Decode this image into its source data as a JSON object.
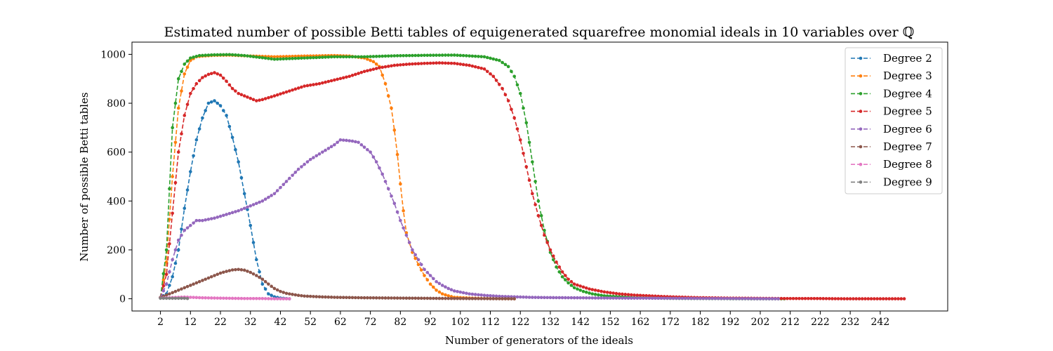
{
  "chart_data": {
    "type": "line",
    "title": "Estimated number of possible Betti tables of equigenerated squarefree monomial ideals in 10 variables over ℚ",
    "xlabel": "Number of generators of the ideals",
    "ylabel": "Number of possible Betti tables",
    "xlim": [
      -7.5,
      264.5
    ],
    "ylim": [
      -50,
      1050
    ],
    "xticks": [
      2,
      12,
      22,
      32,
      42,
      52,
      62,
      72,
      82,
      92,
      102,
      112,
      122,
      132,
      142,
      152,
      162,
      172,
      182,
      192,
      202,
      212,
      222,
      232,
      242
    ],
    "yticks": [
      0,
      200,
      400,
      600,
      800,
      1000
    ],
    "grid": false,
    "legend_position": "top-right",
    "line_style": "dashed",
    "marker": "dot",
    "series": [
      {
        "name": "Degree 2",
        "color": "#1f77b4",
        "points": [
          [
            2,
            5
          ],
          [
            4,
            20
          ],
          [
            6,
            90
          ],
          [
            8,
            200
          ],
          [
            10,
            370
          ],
          [
            12,
            520
          ],
          [
            14,
            650
          ],
          [
            16,
            740
          ],
          [
            18,
            800
          ],
          [
            20,
            810
          ],
          [
            22,
            790
          ],
          [
            24,
            750
          ],
          [
            26,
            660
          ],
          [
            28,
            560
          ],
          [
            30,
            430
          ],
          [
            32,
            300
          ],
          [
            34,
            160
          ],
          [
            36,
            60
          ],
          [
            38,
            20
          ],
          [
            40,
            8
          ],
          [
            42,
            3
          ],
          [
            45,
            0
          ]
        ]
      },
      {
        "name": "Degree 3",
        "color": "#ff7f0e",
        "points": [
          [
            2,
            5
          ],
          [
            4,
            150
          ],
          [
            6,
            500
          ],
          [
            8,
            780
          ],
          [
            10,
            920
          ],
          [
            12,
            975
          ],
          [
            14,
            990
          ],
          [
            16,
            993
          ],
          [
            20,
            996
          ],
          [
            25,
            997
          ],
          [
            30,
            994
          ],
          [
            40,
            990
          ],
          [
            50,
            993
          ],
          [
            60,
            995
          ],
          [
            65,
            993
          ],
          [
            70,
            985
          ],
          [
            73,
            970
          ],
          [
            75,
            950
          ],
          [
            77,
            880
          ],
          [
            79,
            780
          ],
          [
            80,
            690
          ],
          [
            81,
            590
          ],
          [
            82,
            470
          ],
          [
            83,
            360
          ],
          [
            84,
            270
          ],
          [
            86,
            190
          ],
          [
            88,
            140
          ],
          [
            90,
            95
          ],
          [
            92,
            60
          ],
          [
            94,
            35
          ],
          [
            96,
            20
          ],
          [
            98,
            12
          ],
          [
            100,
            6
          ],
          [
            105,
            3
          ],
          [
            110,
            1
          ],
          [
            120,
            0
          ]
        ]
      },
      {
        "name": "Degree 4",
        "color": "#2ca02c",
        "points": [
          [
            2,
            5
          ],
          [
            4,
            200
          ],
          [
            6,
            700
          ],
          [
            8,
            900
          ],
          [
            10,
            960
          ],
          [
            12,
            985
          ],
          [
            15,
            995
          ],
          [
            20,
            998
          ],
          [
            25,
            999
          ],
          [
            30,
            995
          ],
          [
            40,
            980
          ],
          [
            50,
            985
          ],
          [
            60,
            990
          ],
          [
            70,
            990
          ],
          [
            80,
            994
          ],
          [
            90,
            996
          ],
          [
            100,
            997
          ],
          [
            110,
            990
          ],
          [
            115,
            975
          ],
          [
            118,
            950
          ],
          [
            120,
            910
          ],
          [
            122,
            840
          ],
          [
            124,
            720
          ],
          [
            126,
            560
          ],
          [
            128,
            400
          ],
          [
            130,
            280
          ],
          [
            132,
            190
          ],
          [
            134,
            130
          ],
          [
            136,
            90
          ],
          [
            138,
            65
          ],
          [
            140,
            45
          ],
          [
            143,
            30
          ],
          [
            146,
            20
          ],
          [
            150,
            12
          ],
          [
            160,
            5
          ],
          [
            170,
            2
          ],
          [
            180,
            1
          ],
          [
            200,
            0
          ],
          [
            210,
            0
          ]
        ]
      },
      {
        "name": "Degree 5",
        "color": "#d62728",
        "points": [
          [
            2,
            5
          ],
          [
            4,
            100
          ],
          [
            6,
            350
          ],
          [
            8,
            600
          ],
          [
            10,
            750
          ],
          [
            12,
            840
          ],
          [
            14,
            880
          ],
          [
            16,
            905
          ],
          [
            18,
            918
          ],
          [
            20,
            925
          ],
          [
            22,
            915
          ],
          [
            24,
            890
          ],
          [
            26,
            860
          ],
          [
            28,
            840
          ],
          [
            30,
            830
          ],
          [
            32,
            820
          ],
          [
            34,
            810
          ],
          [
            36,
            815
          ],
          [
            40,
            830
          ],
          [
            45,
            850
          ],
          [
            50,
            870
          ],
          [
            55,
            880
          ],
          [
            60,
            895
          ],
          [
            65,
            910
          ],
          [
            70,
            930
          ],
          [
            75,
            945
          ],
          [
            80,
            955
          ],
          [
            85,
            960
          ],
          [
            90,
            963
          ],
          [
            95,
            965
          ],
          [
            100,
            963
          ],
          [
            105,
            955
          ],
          [
            110,
            940
          ],
          [
            113,
            910
          ],
          [
            116,
            860
          ],
          [
            118,
            810
          ],
          [
            120,
            740
          ],
          [
            122,
            650
          ],
          [
            124,
            540
          ],
          [
            126,
            430
          ],
          [
            128,
            340
          ],
          [
            130,
            260
          ],
          [
            132,
            200
          ],
          [
            134,
            150
          ],
          [
            136,
            110
          ],
          [
            138,
            80
          ],
          [
            140,
            60
          ],
          [
            145,
            40
          ],
          [
            150,
            28
          ],
          [
            155,
            20
          ],
          [
            160,
            15
          ],
          [
            170,
            9
          ],
          [
            180,
            5
          ],
          [
            190,
            3
          ],
          [
            200,
            2
          ],
          [
            210,
            1
          ],
          [
            220,
            1
          ],
          [
            230,
            0
          ],
          [
            250,
            0
          ]
        ]
      },
      {
        "name": "Degree 6",
        "color": "#9467bd",
        "points": [
          [
            2,
            5
          ],
          [
            4,
            60
          ],
          [
            6,
            160
          ],
          [
            8,
            240
          ],
          [
            10,
            280
          ],
          [
            12,
            300
          ],
          [
            14,
            320
          ],
          [
            16,
            320
          ],
          [
            20,
            330
          ],
          [
            24,
            345
          ],
          [
            28,
            360
          ],
          [
            32,
            380
          ],
          [
            36,
            400
          ],
          [
            40,
            430
          ],
          [
            44,
            480
          ],
          [
            48,
            530
          ],
          [
            52,
            570
          ],
          [
            56,
            600
          ],
          [
            60,
            630
          ],
          [
            62,
            650
          ],
          [
            64,
            648
          ],
          [
            66,
            645
          ],
          [
            68,
            640
          ],
          [
            70,
            620
          ],
          [
            72,
            600
          ],
          [
            74,
            560
          ],
          [
            76,
            510
          ],
          [
            78,
            450
          ],
          [
            80,
            390
          ],
          [
            82,
            320
          ],
          [
            84,
            260
          ],
          [
            86,
            200
          ],
          [
            88,
            160
          ],
          [
            90,
            120
          ],
          [
            92,
            95
          ],
          [
            94,
            70
          ],
          [
            96,
            55
          ],
          [
            98,
            42
          ],
          [
            100,
            32
          ],
          [
            105,
            20
          ],
          [
            110,
            14
          ],
          [
            115,
            10
          ],
          [
            120,
            8
          ],
          [
            125,
            6
          ],
          [
            130,
            5
          ],
          [
            140,
            4
          ],
          [
            150,
            3
          ],
          [
            170,
            2
          ],
          [
            190,
            1
          ],
          [
            208,
            0
          ]
        ]
      },
      {
        "name": "Degree 7",
        "color": "#8c564b",
        "points": [
          [
            2,
            5
          ],
          [
            4,
            15
          ],
          [
            6,
            25
          ],
          [
            8,
            35
          ],
          [
            10,
            45
          ],
          [
            12,
            55
          ],
          [
            14,
            65
          ],
          [
            16,
            75
          ],
          [
            18,
            85
          ],
          [
            20,
            95
          ],
          [
            22,
            105
          ],
          [
            24,
            112
          ],
          [
            26,
            118
          ],
          [
            28,
            120
          ],
          [
            30,
            117
          ],
          [
            32,
            108
          ],
          [
            34,
            95
          ],
          [
            36,
            80
          ],
          [
            38,
            60
          ],
          [
            40,
            42
          ],
          [
            42,
            30
          ],
          [
            44,
            22
          ],
          [
            46,
            18
          ],
          [
            48,
            14
          ],
          [
            50,
            11
          ],
          [
            55,
            8
          ],
          [
            60,
            6
          ],
          [
            65,
            5
          ],
          [
            70,
            4
          ],
          [
            80,
            3
          ],
          [
            90,
            2
          ],
          [
            100,
            1
          ],
          [
            120,
            0
          ]
        ]
      },
      {
        "name": "Degree 8",
        "color": "#e377c2",
        "points": [
          [
            2,
            3
          ],
          [
            4,
            4
          ],
          [
            6,
            5
          ],
          [
            8,
            6
          ],
          [
            10,
            7
          ],
          [
            12,
            6
          ],
          [
            14,
            5
          ],
          [
            16,
            4
          ],
          [
            20,
            3
          ],
          [
            25,
            2
          ],
          [
            30,
            1
          ],
          [
            35,
            1
          ],
          [
            40,
            0
          ],
          [
            45,
            0
          ]
        ]
      },
      {
        "name": "Degree 9",
        "color": "#7f7f7f",
        "points": [
          [
            2,
            2
          ],
          [
            3,
            2
          ],
          [
            4,
            2
          ],
          [
            5,
            2
          ],
          [
            6,
            2
          ],
          [
            7,
            2
          ],
          [
            8,
            2
          ],
          [
            9,
            2
          ],
          [
            10,
            2
          ],
          [
            11,
            1
          ]
        ]
      }
    ]
  }
}
